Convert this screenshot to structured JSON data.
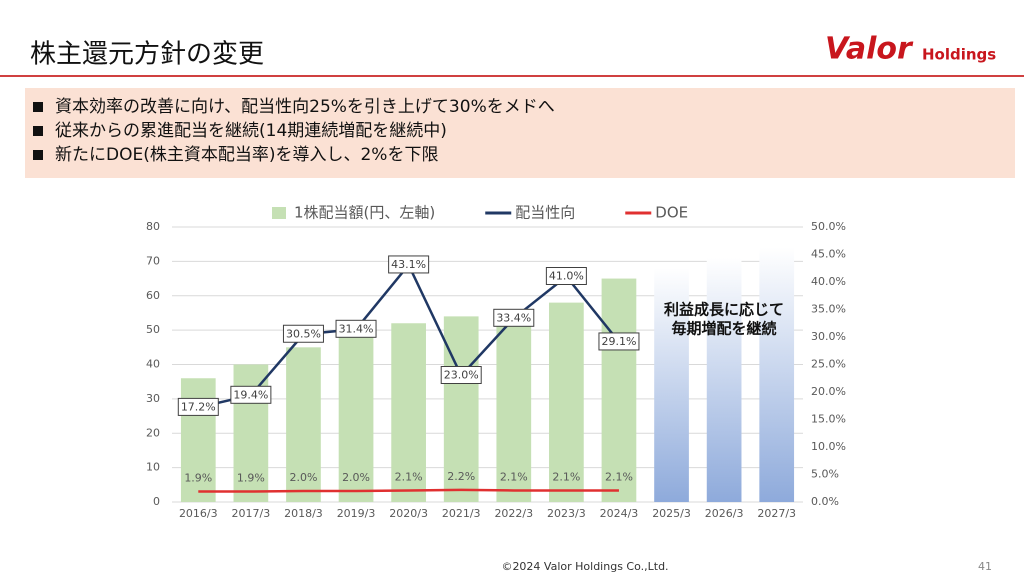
{
  "header": {
    "title": "株主還元方針の変更",
    "logo_main": "Valor",
    "logo_sub": "Holdings"
  },
  "bullets": [
    "資本効率の改善に向け、配当性向25%を引き上げて30%をメドへ",
    "従来からの累進配当を継続(14期連続増配を継続中)",
    "新たにDOE(株主資本配当率)を導入し、2%を下限"
  ],
  "chart_data": {
    "type": "bar",
    "categories": [
      "2016/3",
      "2017/3",
      "2018/3",
      "2019/3",
      "2020/3",
      "2021/3",
      "2022/3",
      "2023/3",
      "2024/3",
      "2025/3",
      "2026/3",
      "2027/3"
    ],
    "series": [
      {
        "name": "1株配当額(円、左軸)",
        "type": "bar",
        "color": "#c5e0b4",
        "values": [
          36,
          40,
          45,
          49,
          52,
          54,
          56,
          58,
          65,
          null,
          null,
          null
        ]
      },
      {
        "name": "配当性向",
        "type": "line",
        "axis": "y2",
        "color": "#203864",
        "values": [
          17.2,
          19.4,
          30.5,
          31.4,
          43.1,
          23.0,
          33.4,
          41.0,
          29.1,
          null,
          null,
          null
        ],
        "value_labels": [
          "17.2%",
          "19.4%",
          "30.5%",
          "31.4%",
          "43.1%",
          "23.0%",
          "33.4%",
          "41.0%",
          "29.1%",
          null,
          null,
          null
        ]
      },
      {
        "name": "DOE",
        "type": "line",
        "axis": "y2",
        "color": "#e03030",
        "values": [
          1.9,
          1.9,
          2.0,
          2.0,
          2.1,
          2.2,
          2.1,
          2.1,
          2.1,
          null,
          null,
          null
        ],
        "value_labels": [
          "1.9%",
          "1.9%",
          "2.0%",
          "2.0%",
          "2.1%",
          "2.2%",
          "2.1%",
          "2.1%",
          "2.1%",
          null,
          null,
          null
        ]
      }
    ],
    "forecast_values": [
      null,
      null,
      null,
      null,
      null,
      null,
      null,
      null,
      null,
      68,
      71,
      74
    ],
    "forecast_color": "#8eaadb",
    "annotation": [
      "利益成長に応じて",
      "毎期増配を継続"
    ],
    "ylim": [
      0,
      80
    ],
    "yticks": [
      0,
      10,
      20,
      30,
      40,
      50,
      60,
      70,
      80
    ],
    "y2lim": [
      0,
      50
    ],
    "y2ticks": [
      {
        "value": 0,
        "label": "0.0%"
      },
      {
        "value": 5,
        "label": "5.0%"
      },
      {
        "value": 10,
        "label": "10.0%"
      },
      {
        "value": 15,
        "label": "15.0%"
      },
      {
        "value": 20,
        "label": "20.0%"
      },
      {
        "value": 25,
        "label": "25.0%"
      },
      {
        "value": 30,
        "label": "30.0%"
      },
      {
        "value": 35,
        "label": "35.0%"
      },
      {
        "value": 40,
        "label": "40.0%"
      },
      {
        "value": 45,
        "label": "45.0%"
      },
      {
        "value": 50,
        "label": "50.0%"
      }
    ],
    "grid": true,
    "legend": "top"
  },
  "footer": {
    "copyright": "©2024 Valor Holdings Co.,Ltd.",
    "page": "41"
  }
}
